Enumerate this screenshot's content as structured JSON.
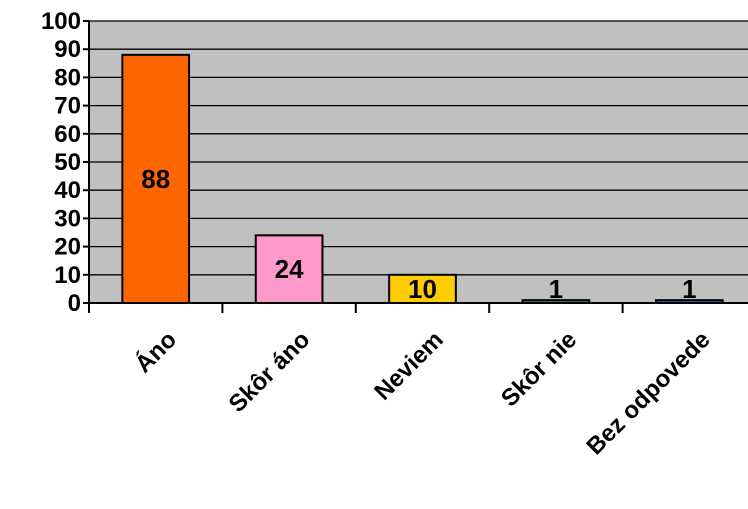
{
  "chart_data": {
    "type": "bar",
    "title": "",
    "xlabel": "",
    "ylabel": "",
    "categories": [
      "Áno",
      "Skôr áno",
      "Neviem",
      "Skôr nie",
      "Bez odpovede"
    ],
    "values": [
      88,
      24,
      10,
      1,
      1
    ],
    "data_labels": [
      "88",
      "24",
      "10",
      "1",
      "1"
    ],
    "bar_colors": [
      "#ff6600",
      "#ff99cc",
      "#ffcc00",
      "#339966",
      "#3366cc"
    ],
    "ylim": [
      0,
      100
    ],
    "yticks": [
      0,
      10,
      20,
      30,
      40,
      50,
      60,
      70,
      80,
      90,
      100
    ],
    "ytick_labels": [
      "0",
      "10",
      "20",
      "30",
      "40",
      "50",
      "60",
      "70",
      "80",
      "90",
      "100"
    ],
    "grid": true,
    "legend": "none",
    "plot_background": "#c0c0c0"
  }
}
